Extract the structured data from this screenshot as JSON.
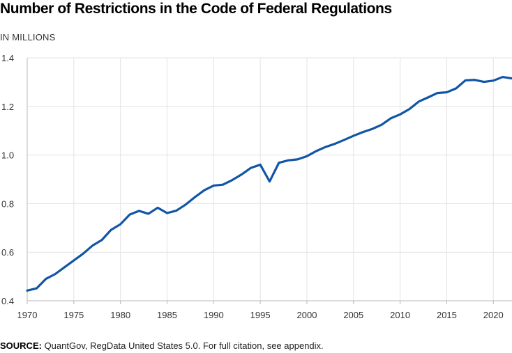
{
  "title": "Number of Restrictions in the Code of Federal Regulations",
  "unit_label": "IN MILLIONS",
  "source": {
    "label": "SOURCE:",
    "text": " QuantGov, RegData United States 5.0. For full citation, see appendix."
  },
  "colors": {
    "line": "#1155a6",
    "grid": "#e3e3e3",
    "axis": "#b8b8b8"
  },
  "chart_data": {
    "type": "line",
    "title": "Number of Restrictions in the Code of Federal Regulations",
    "xlabel": "",
    "ylabel": "IN MILLIONS",
    "xlim": [
      1970,
      2022
    ],
    "ylim": [
      0.4,
      1.4
    ],
    "xticks": [
      1970,
      1975,
      1980,
      1985,
      1990,
      1995,
      2000,
      2005,
      2010,
      2015,
      2020
    ],
    "yticks": [
      0.4,
      0.6,
      0.8,
      1.0,
      1.2,
      1.4
    ],
    "ytick_labels": [
      "0.4",
      "0.6",
      "0.8",
      "1.0",
      "1.2",
      "1.4"
    ],
    "grid": {
      "vertical": true,
      "horizontal": true
    },
    "series": [
      {
        "x": [
          1970,
          1971,
          1972,
          1973,
          1974,
          1975,
          1976,
          1977,
          1978,
          1979,
          1980,
          1981,
          1982,
          1983,
          1984,
          1985,
          1986,
          1987,
          1988,
          1989,
          1990,
          1991,
          1992,
          1993,
          1994,
          1995,
          1996,
          1997,
          1998,
          1999,
          2000,
          2001,
          2002,
          2003,
          2004,
          2005,
          2006,
          2007,
          2008,
          2009,
          2010,
          2011,
          2012,
          2013,
          2014,
          2015,
          2016,
          2017,
          2018,
          2019,
          2020,
          2021,
          2022
        ],
        "values": [
          0.442,
          0.451,
          0.49,
          0.51,
          0.538,
          0.566,
          0.594,
          0.627,
          0.65,
          0.692,
          0.715,
          0.755,
          0.77,
          0.758,
          0.783,
          0.761,
          0.771,
          0.796,
          0.827,
          0.855,
          0.874,
          0.878,
          0.897,
          0.92,
          0.947,
          0.96,
          0.891,
          0.968,
          0.978,
          0.982,
          0.995,
          1.016,
          1.033,
          1.046,
          1.062,
          1.079,
          1.094,
          1.107,
          1.124,
          1.151,
          1.167,
          1.189,
          1.22,
          1.237,
          1.255,
          1.258,
          1.274,
          1.307,
          1.309,
          1.301,
          1.306,
          1.321,
          1.315
        ]
      }
    ]
  }
}
